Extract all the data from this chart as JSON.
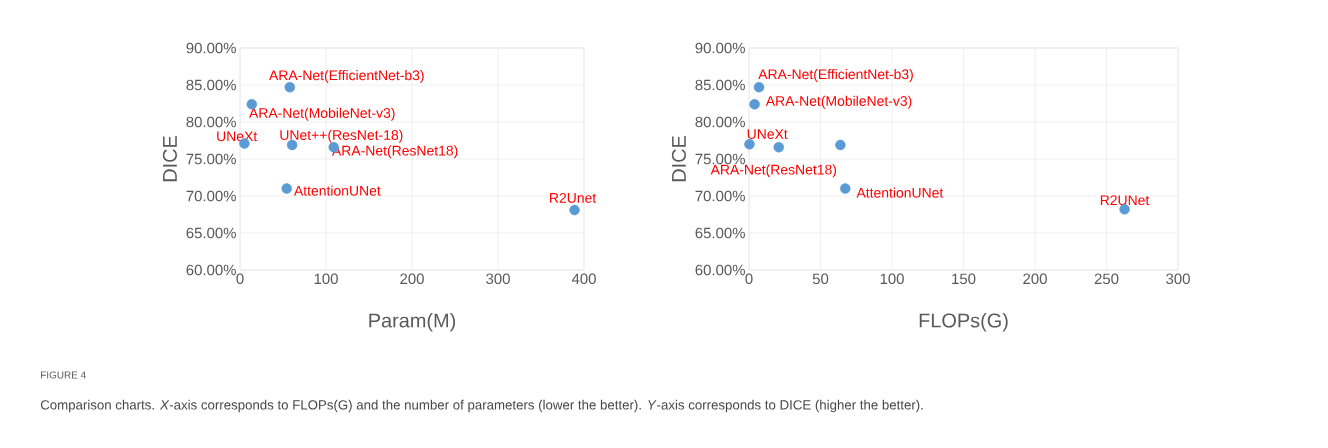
{
  "chart_data": [
    {
      "type": "scatter",
      "xlabel": "Param(M)",
      "ylabel": "DICE",
      "x": [
        57.9,
        13.7,
        5.1,
        60.6,
        109,
        54.3,
        389
      ],
      "values": [
        84.7,
        82.4,
        77.1,
        76.9,
        76.6,
        71.0,
        68.1
      ],
      "color": "#5b9bd5",
      "marker": "circle",
      "grid": true,
      "xlim": [
        0,
        400
      ],
      "xticks": [
        0,
        100,
        200,
        300,
        400
      ],
      "ylim": [
        60,
        90
      ],
      "yticks": [
        {
          "value": 60,
          "label": "60.00%"
        },
        {
          "value": 65,
          "label": "65.00%"
        },
        {
          "value": 70,
          "label": "70.00%"
        },
        {
          "value": 75,
          "label": "75.00%"
        },
        {
          "value": 80,
          "label": "80.00%"
        },
        {
          "value": 85,
          "label": "85.00%"
        },
        {
          "value": 90,
          "label": "90.00%"
        }
      ],
      "annotations": [
        {
          "text": "ARA-Net(EfficientNet-b3)",
          "x": 57.9,
          "y": 84.7
        },
        {
          "text": "ARA-Net(MobileNet-v3)",
          "x": 13.7,
          "y": 82.4
        },
        {
          "text": "UNeXt",
          "x": 5.1,
          "y": 77.1
        },
        {
          "text": "UNet++(ResNet-18)",
          "x": 60.6,
          "y": 76.9
        },
        {
          "text": "ARA-Net(ResNet18)",
          "x": 109,
          "y": 76.6
        },
        {
          "text": "AttentionUNet",
          "x": 54.3,
          "y": 71.0
        },
        {
          "text": "R2Unet",
          "x": 389,
          "y": 68.1
        },
        "FIGURE 4",
        "Comparison charts. *X*-axis corresponds to FLOPs(G) and the number of parameters (lower the better). *Y*-axis corresponds to DICE (higher the better)."
      ]
    },
    {
      "type": "scatter",
      "xlabel": "FLOPs(G)",
      "ylabel": "DICE",
      "x": [
        7.0,
        3.9,
        0.3,
        20.8,
        63.9,
        67.3,
        262.6
      ],
      "values": [
        84.7,
        82.4,
        77.0,
        76.6,
        76.9,
        71.0,
        68.2
      ],
      "color": "#5b9bd5",
      "marker": "circle",
      "grid": true,
      "xlim": [
        0,
        300
      ],
      "xticks": [
        0,
        50,
        100,
        150,
        200,
        250,
        300
      ],
      "ylim": [
        60,
        90
      ],
      "yticks": [
        {
          "value": 60,
          "label": "60.00%"
        },
        {
          "value": 65,
          "label": "65.00%"
        },
        {
          "value": 70,
          "label": "70.00%"
        },
        {
          "value": 75,
          "label": "75.00%"
        },
        {
          "value": 80,
          "label": "80.00%"
        },
        {
          "value": 85,
          "label": "85.00%"
        },
        {
          "value": 90,
          "label": "90.00%"
        }
      ],
      "annotations": [
        {
          "text": "ARA-Net(EfficientNet-b3)",
          "x": 7.0,
          "y": 84.7
        },
        {
          "text": "ARA-Net(MobileNet-v3)",
          "x": 3.9,
          "y": 82.4
        },
        {
          "text": "UNeXt",
          "x": 0.3,
          "y": 77.0
        },
        {
          "text": "ARA-Net(ResNet18)",
          "x": 20.8,
          "y": 76.6
        },
        {
          "text": "AttentionUNet",
          "x": 67.3,
          "y": 71.0
        },
        {
          "text": "R2UNet",
          "x": 262.6,
          "y": 68.2
        }
      ]
    }
  ]
}
